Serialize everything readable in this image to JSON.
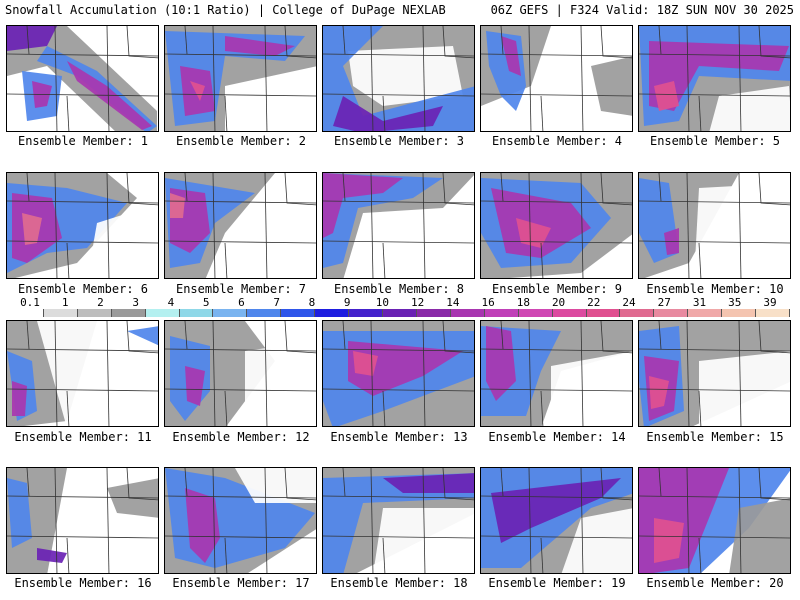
{
  "header": {
    "left_title": "Snowfall Accumulation (10:1 Ratio) | College of DuPage NEXLAB",
    "right_title": "06Z GEFS | F324 Valid: 18Z SUN NOV 30 2025"
  },
  "legend": {
    "labels": [
      "0.1",
      "1",
      "2",
      "3",
      "4",
      "5",
      "6",
      "7",
      "8",
      "9",
      "10",
      "12",
      "14",
      "16",
      "18",
      "20",
      "22",
      "24",
      "27",
      "31",
      "35",
      "39"
    ],
    "colors": [
      "#ffffff",
      "#dcdcdc",
      "#bdbdbd",
      "#9a9a9a",
      "#b4f0f0",
      "#8fd8e8",
      "#7ab4f0",
      "#4f86ec",
      "#2f56ea",
      "#1e1ee0",
      "#4422cc",
      "#6a22b4",
      "#8a2aa8",
      "#a836b0",
      "#c040b8",
      "#d048b4",
      "#dc4aa0",
      "#e05090",
      "#e06a90",
      "#e88aa0",
      "#f0a8a8",
      "#f4c4b0",
      "#f8e0c8"
    ]
  },
  "members": [
    {
      "caption": "Ensemble Member: 1"
    },
    {
      "caption": "Ensemble Member: 2"
    },
    {
      "caption": "Ensemble Member: 3"
    },
    {
      "caption": "Ensemble Member: 4"
    },
    {
      "caption": "Ensemble Member: 5"
    },
    {
      "caption": "Ensemble Member: 6"
    },
    {
      "caption": "Ensemble Member: 7"
    },
    {
      "caption": "Ensemble Member: 8"
    },
    {
      "caption": "Ensemble Member: 9"
    },
    {
      "caption": "Ensemble Member: 10"
    },
    {
      "caption": "Ensemble Member: 11"
    },
    {
      "caption": "Ensemble Member: 12"
    },
    {
      "caption": "Ensemble Member: 13"
    },
    {
      "caption": "Ensemble Member: 14"
    },
    {
      "caption": "Ensemble Member: 15"
    },
    {
      "caption": "Ensemble Member: 16"
    },
    {
      "caption": "Ensemble Member: 17"
    },
    {
      "caption": "Ensemble Member: 18"
    },
    {
      "caption": "Ensemble Member: 19"
    },
    {
      "caption": "Ensemble Member: 20"
    }
  ]
}
